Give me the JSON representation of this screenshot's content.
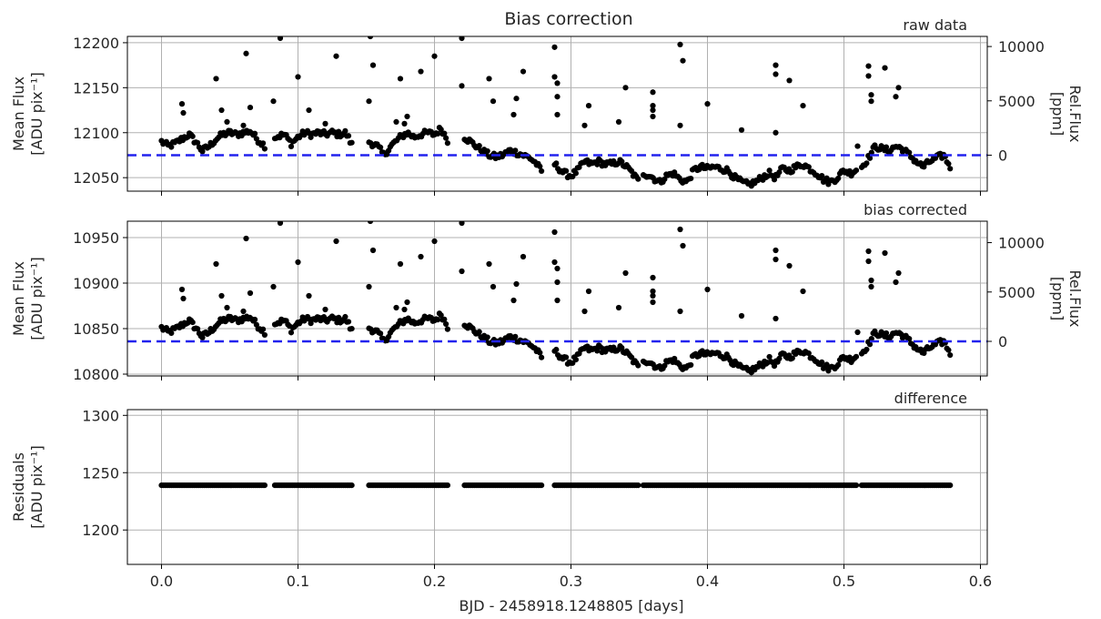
{
  "figure": {
    "title": "Bias correction",
    "xlabel": "BJD - 2458918.1248805 [days]"
  },
  "colors": {
    "points": "#000000",
    "reference_line": "#2222ee",
    "grid": "#b0b0b0",
    "frame": "#000000"
  },
  "chart_data": [
    {
      "type": "scatter",
      "title": "Bias correction",
      "corner_label": "raw data",
      "ylabel_lines": [
        "Mean Flux",
        "[ADU pix⁻¹]"
      ],
      "ylabel2_lines": [
        "Rel.Flux",
        "[ppm]"
      ],
      "xlim": [
        -0.025,
        0.605
      ],
      "ylim": [
        12035,
        12207
      ],
      "yticks": [
        12050,
        12100,
        12150,
        12200
      ],
      "y2ticks": [
        0,
        5000,
        10000
      ],
      "y2_zero_at": 12075,
      "y2_ppm_per_unit": 82.8,
      "reference_line_y": 12075,
      "grid": true,
      "segments": [
        [
          0.0,
          0.076
        ],
        [
          0.083,
          0.14
        ],
        [
          0.152,
          0.21
        ],
        [
          0.222,
          0.279
        ],
        [
          0.288,
          0.35
        ],
        [
          0.353,
          0.51
        ],
        [
          0.513,
          0.578
        ]
      ],
      "trend_x": [
        0.0,
        0.005,
        0.01,
        0.015,
        0.02,
        0.025,
        0.03,
        0.035,
        0.04,
        0.045,
        0.05,
        0.055,
        0.06,
        0.065,
        0.07,
        0.076,
        0.083,
        0.09,
        0.095,
        0.1,
        0.105,
        0.11,
        0.115,
        0.12,
        0.125,
        0.13,
        0.135,
        0.14,
        0.152,
        0.158,
        0.163,
        0.168,
        0.175,
        0.18,
        0.185,
        0.19,
        0.195,
        0.2,
        0.205,
        0.21,
        0.222,
        0.228,
        0.235,
        0.24,
        0.245,
        0.25,
        0.255,
        0.26,
        0.265,
        0.27,
        0.275,
        0.279,
        0.288,
        0.295,
        0.3,
        0.305,
        0.31,
        0.315,
        0.32,
        0.325,
        0.33,
        0.335,
        0.34,
        0.345,
        0.35,
        0.353,
        0.358,
        0.365,
        0.37,
        0.375,
        0.38,
        0.385,
        0.39,
        0.395,
        0.4,
        0.405,
        0.41,
        0.415,
        0.42,
        0.425,
        0.43,
        0.435,
        0.44,
        0.445,
        0.45,
        0.455,
        0.46,
        0.465,
        0.47,
        0.475,
        0.48,
        0.485,
        0.49,
        0.495,
        0.5,
        0.505,
        0.51,
        0.513,
        0.518,
        0.523,
        0.528,
        0.533,
        0.538,
        0.543,
        0.548,
        0.553,
        0.558,
        0.563,
        0.568,
        0.573,
        0.578
      ],
      "trend_y": [
        12090,
        12085,
        12088,
        12093,
        12098,
        12090,
        12080,
        12085,
        12093,
        12098,
        12100,
        12098,
        12100,
        12102,
        12093,
        12085,
        12095,
        12098,
        12088,
        12095,
        12100,
        12098,
        12100,
        12098,
        12100,
        12098,
        12100,
        12085,
        12090,
        12085,
        12075,
        12085,
        12095,
        12100,
        12095,
        12098,
        12100,
        12098,
        12105,
        12090,
        12095,
        12088,
        12080,
        12075,
        12073,
        12075,
        12080,
        12078,
        12075,
        12072,
        12065,
        12055,
        12065,
        12055,
        12052,
        12058,
        12068,
        12065,
        12068,
        12065,
        12065,
        12068,
        12063,
        12055,
        12045,
        12055,
        12052,
        12045,
        12052,
        12055,
        12048,
        12045,
        12058,
        12062,
        12060,
        12062,
        12060,
        12058,
        12050,
        12045,
        12042,
        12045,
        12050,
        12055,
        12050,
        12060,
        12058,
        12062,
        12065,
        12060,
        12055,
        12048,
        12045,
        12050,
        12058,
        12055,
        12060,
        12062,
        12072,
        12085,
        12082,
        12080,
        12085,
        12082,
        12075,
        12068,
        12062,
        12068,
        12072,
        12075,
        12062
      ],
      "outliers": [
        [
          0.015,
          12132
        ],
        [
          0.016,
          12122
        ],
        [
          0.04,
          12160
        ],
        [
          0.044,
          12125
        ],
        [
          0.048,
          12112
        ],
        [
          0.06,
          12108
        ],
        [
          0.062,
          12188
        ],
        [
          0.065,
          12128
        ],
        [
          0.082,
          12135
        ],
        [
          0.087,
          12205
        ],
        [
          0.1,
          12162
        ],
        [
          0.108,
          12125
        ],
        [
          0.12,
          12110
        ],
        [
          0.128,
          12185
        ],
        [
          0.153,
          12207
        ],
        [
          0.155,
          12175
        ],
        [
          0.152,
          12135
        ],
        [
          0.172,
          12112
        ],
        [
          0.175,
          12160
        ],
        [
          0.178,
          12110
        ],
        [
          0.18,
          12118
        ],
        [
          0.19,
          12168
        ],
        [
          0.2,
          12185
        ],
        [
          0.22,
          12205
        ],
        [
          0.22,
          12152
        ],
        [
          0.24,
          12160
        ],
        [
          0.243,
          12135
        ],
        [
          0.26,
          12138
        ],
        [
          0.265,
          12168
        ],
        [
          0.258,
          12120
        ],
        [
          0.288,
          12195
        ],
        [
          0.288,
          12162
        ],
        [
          0.29,
          12155
        ],
        [
          0.29,
          12140
        ],
        [
          0.29,
          12120
        ],
        [
          0.31,
          12108
        ],
        [
          0.313,
          12130
        ],
        [
          0.335,
          12112
        ],
        [
          0.34,
          12150
        ],
        [
          0.36,
          12145
        ],
        [
          0.36,
          12130
        ],
        [
          0.36,
          12125
        ],
        [
          0.36,
          12118
        ],
        [
          0.38,
          12198
        ],
        [
          0.382,
          12180
        ],
        [
          0.38,
          12108
        ],
        [
          0.4,
          12132
        ],
        [
          0.425,
          12103
        ],
        [
          0.45,
          12175
        ],
        [
          0.45,
          12165
        ],
        [
          0.45,
          12100
        ],
        [
          0.46,
          12158
        ],
        [
          0.47,
          12130
        ],
        [
          0.51,
          12085
        ],
        [
          0.518,
          12174
        ],
        [
          0.518,
          12163
        ],
        [
          0.52,
          12142
        ],
        [
          0.52,
          12135
        ],
        [
          0.53,
          12172
        ],
        [
          0.538,
          12140
        ],
        [
          0.54,
          12150
        ]
      ]
    },
    {
      "type": "scatter",
      "corner_label": "bias corrected",
      "ylabel_lines": [
        "Mean Flux",
        "[ADU pix⁻¹]"
      ],
      "ylabel2_lines": [
        "Rel.Flux",
        "[ppm]"
      ],
      "xlim": [
        -0.025,
        0.605
      ],
      "ylim": [
        10798,
        10968
      ],
      "yticks": [
        10800,
        10850,
        10900,
        10950
      ],
      "y2ticks": [
        0,
        5000,
        10000
      ],
      "y2_zero_at": 10836,
      "y2_ppm_per_unit": 92.2,
      "reference_line_y": 10836,
      "grid": true,
      "same_pattern_as_raw": true,
      "raw_offset": -1239
    },
    {
      "type": "scatter",
      "corner_label": "difference",
      "ylabel_lines": [
        "Residuals",
        "[ADU pix⁻¹]"
      ],
      "xlim": [
        -0.025,
        0.605
      ],
      "ylim": [
        1170,
        1305
      ],
      "yticks": [
        1200,
        1250,
        1300
      ],
      "xticks": [
        0.0,
        0.1,
        0.2,
        0.3,
        0.4,
        0.5,
        0.6
      ],
      "xticklabels": [
        "0.0",
        "0.1",
        "0.2",
        "0.3",
        "0.4",
        "0.5",
        "0.6"
      ],
      "grid": true,
      "constant_value": 1239
    }
  ]
}
